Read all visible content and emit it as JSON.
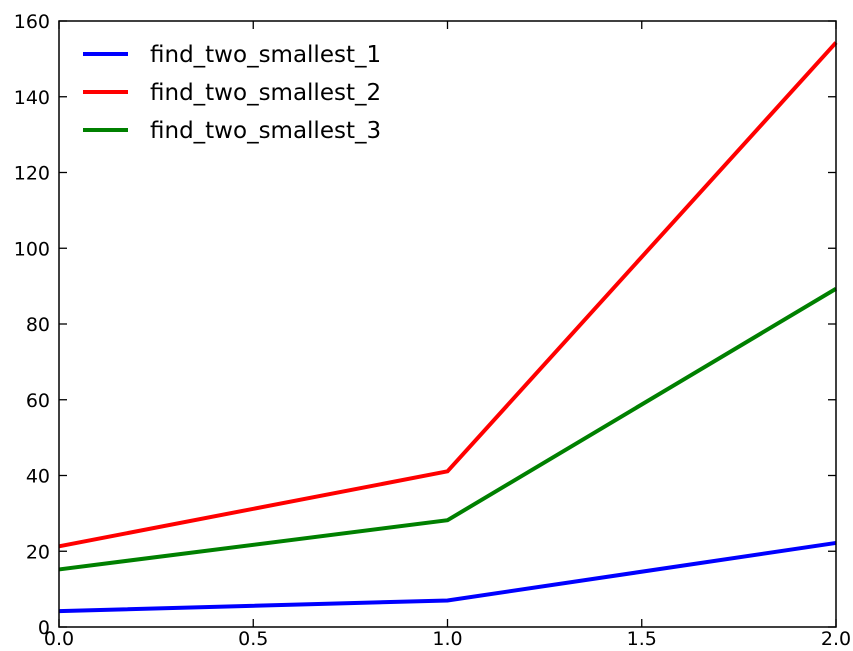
{
  "chart_data": {
    "type": "line",
    "title": "",
    "xlabel": "",
    "ylabel": "",
    "xlim": [
      0.0,
      2.0
    ],
    "ylim": [
      0,
      160
    ],
    "x": [
      0.0,
      1.0,
      2.0
    ],
    "xticks": [
      0.0,
      0.5,
      1.0,
      1.5,
      2.0
    ],
    "xtick_labels": [
      "0.0",
      "0.5",
      "1.0",
      "1.5",
      "2.0"
    ],
    "yticks": [
      0,
      20,
      40,
      60,
      80,
      100,
      120,
      140,
      160
    ],
    "ytick_labels": [
      "0",
      "20",
      "40",
      "60",
      "80",
      "100",
      "120",
      "140",
      "160"
    ],
    "grid": false,
    "legend_position": "top-left",
    "series": [
      {
        "name": "find_two_smallest_1",
        "color": "#0000ff",
        "values": [
          4.2,
          7.0,
          22.2
        ]
      },
      {
        "name": "find_two_smallest_2",
        "color": "#ff0000",
        "values": [
          21.3,
          41.1,
          154.3
        ]
      },
      {
        "name": "find_two_smallest_3",
        "color": "#008000",
        "values": [
          15.2,
          28.2,
          89.3
        ]
      }
    ]
  }
}
